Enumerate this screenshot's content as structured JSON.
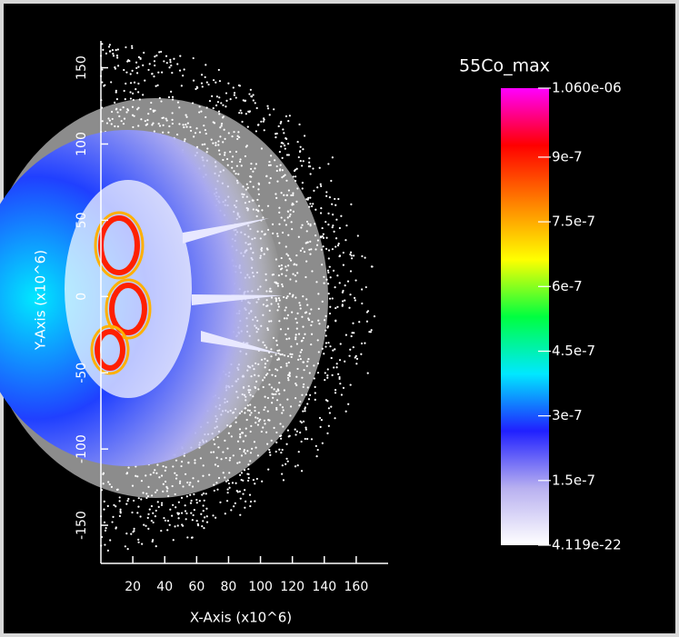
{
  "chart_data": {
    "type": "field-plot",
    "title": "55Co_max",
    "x_label": "X-Axis (x10^6)",
    "y_label": "Y-Axis (x10^6)",
    "xlim": [
      0,
      180
    ],
    "xticks": [
      20,
      40,
      60,
      80,
      100,
      120,
      140,
      160
    ],
    "ylim": [
      -175,
      170
    ],
    "yticks": [
      -150,
      -100,
      -50,
      0,
      50,
      100,
      150
    ],
    "colorbar_lim": [
      4.119e-22,
      1.06e-06
    ],
    "colorbar_ticks": [
      {
        "value": 1.06e-06,
        "label": "1.060e-06"
      },
      9e-07,
      7.5e-07,
      6e-07,
      4.5e-07,
      3e-07,
      1.5e-07,
      4.119e-22
    ],
    "colormap": [
      "#ffffff",
      "#b8b0f0",
      "#2020ff",
      "#00e8ff",
      "#00ff40",
      "#ffff00",
      "#ff8000",
      "#ff0000",
      "#ff00ff"
    ]
  }
}
